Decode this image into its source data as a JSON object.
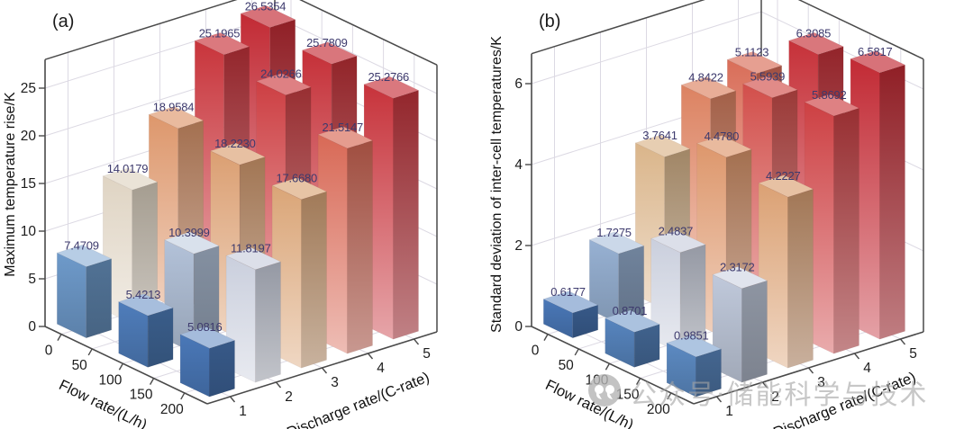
{
  "watermark": {
    "logo": "quote-marks-icon",
    "text": "公众号·储能科学与技术"
  },
  "colors": {
    "value_label": "#3d3a6d",
    "grid": "#dcd9e3",
    "axis_edge": "#4a4a4a",
    "tick_text": "#1c1c1c",
    "wall": "#ffffff",
    "colormap": [
      [
        0.0,
        "#4a78b8"
      ],
      [
        0.1,
        "#6896c8"
      ],
      [
        0.22,
        "#a9bcd8"
      ],
      [
        0.32,
        "#ccd0dd"
      ],
      [
        0.42,
        "#e0d4c2"
      ],
      [
        0.55,
        "#d9ae7e"
      ],
      [
        0.68,
        "#de8f66"
      ],
      [
        0.8,
        "#d65a50"
      ],
      [
        0.9,
        "#cb3a40"
      ],
      [
        1.0,
        "#c22a34"
      ]
    ]
  },
  "chart_data": [
    {
      "type": "bar3d",
      "panel_label": "(a)",
      "zlabel": "Maximum temperature rise/K",
      "xlabel": "Discharge rate/(C-rate)",
      "ylabel": "Flow rate/(L/h)",
      "x_ticks": [
        "1",
        "2",
        "3",
        "4",
        "5"
      ],
      "y_ticks": [
        "0",
        "50",
        "100",
        "150",
        "200"
      ],
      "z_ticks": [
        "0",
        "5",
        "10",
        "15",
        "20",
        "25"
      ],
      "grid": "on",
      "series": [
        {
          "flow": "0",
          "values": [
            "7.4709",
            "14.0179",
            "18.9584",
            "25.1965",
            "26.5354"
          ]
        },
        {
          "flow": "100",
          "values": [
            "5.4213",
            "10.3999",
            "18.2230",
            "24.0266",
            "25.7809"
          ]
        },
        {
          "flow": "200",
          "values": [
            "5.0816",
            "11.8197",
            "17.6680",
            "21.5147",
            "25.2766"
          ]
        }
      ]
    },
    {
      "type": "bar3d",
      "panel_label": "(b)",
      "zlabel": "Standard deviation of inter-cell temperatures/K",
      "xlabel": "Discharge rate/(C-rate)",
      "ylabel": "Flow rate/(L/h)",
      "x_ticks": [
        "1",
        "2",
        "3",
        "4",
        "5"
      ],
      "y_ticks": [
        "0",
        "50",
        "100",
        "150",
        "200"
      ],
      "z_ticks": [
        "0",
        "2",
        "4",
        "6"
      ],
      "grid": "on",
      "series": [
        {
          "flow": "0",
          "values": [
            "0.6177",
            "1.7275",
            "3.7641",
            "4.8422",
            "5.1123"
          ]
        },
        {
          "flow": "100",
          "values": [
            "0.8701",
            "2.4837",
            "4.4780",
            "5.5939",
            "6.3085"
          ]
        },
        {
          "flow": "200",
          "values": [
            "0.9851",
            "2.3172",
            "4.2227",
            "5.8692",
            "6.5817"
          ]
        }
      ]
    }
  ]
}
